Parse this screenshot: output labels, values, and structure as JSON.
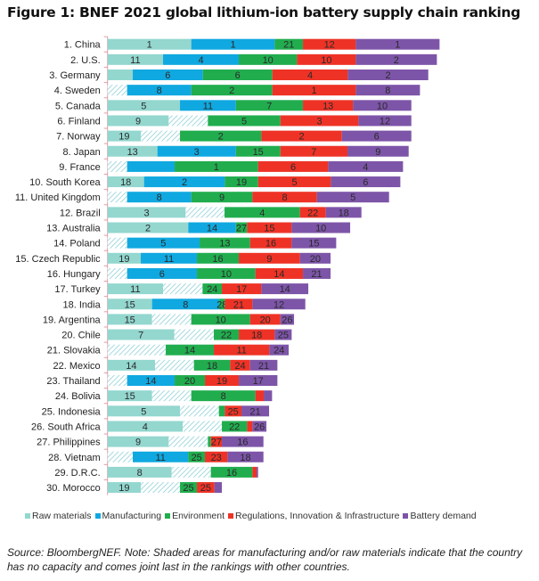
{
  "title": "Figure 1: BNEF 2021 global lithium-ion battery supply chain ranking",
  "source_note": "Source: BloombergNEF. Note: Shaded areas for manufacturing and/or raw materials indicate that the country has no capacity and comes joint last in the rankings with other countries.",
  "chart_data": {
    "type": "bar",
    "orientation": "horizontal",
    "stacked": true,
    "title": "Figure 1: BNEF 2021 global lithium-ion battery supply chain ranking",
    "xlabel": "",
    "ylabel": "",
    "xlim": [
      0,
      120
    ],
    "grid": false,
    "legend_placement": "bottom",
    "segment_text": "rank of the country in each category",
    "series": [
      {
        "name": "Raw materials",
        "color": "#93d7cf"
      },
      {
        "name": "Manufacturing",
        "color": "#10a8e0"
      },
      {
        "name": "Environment",
        "color": "#21ad4e"
      },
      {
        "name": "Regulations, Innovation & Infrastructure",
        "color": "#ee3326"
      },
      {
        "name": "Battery demand",
        "color": "#7d55a8"
      }
    ],
    "hatch_color": "#8fd0d8",
    "rows": [
      {
        "country": "1. China",
        "scores": [
          28.2,
          28.1,
          9.5,
          17.8,
          28.2
        ],
        "ranks": [
          "1",
          "1",
          "21",
          "12",
          "1"
        ],
        "no_capacity": [
          false,
          false,
          false,
          false,
          false
        ]
      },
      {
        "country": "2. U.S.",
        "scores": [
          18.7,
          25.5,
          19.6,
          19.8,
          27.3
        ],
        "ranks": [
          "11",
          "4",
          "10",
          "10",
          "2"
        ],
        "no_capacity": [
          false,
          false,
          false,
          false,
          false
        ]
      },
      {
        "country": "3. Germany",
        "scores": [
          8.5,
          23.6,
          23.4,
          25.4,
          27.1
        ],
        "ranks": [
          "",
          "6",
          "6",
          "4",
          "2"
        ],
        "no_capacity": [
          false,
          false,
          false,
          false,
          false
        ]
      },
      {
        "country": "4. Sweden",
        "scores": [
          6.6,
          21.6,
          27.3,
          28.1,
          21.6
        ],
        "ranks": [
          "",
          "8",
          "2",
          "1",
          "8"
        ],
        "no_capacity": [
          true,
          false,
          false,
          false,
          false
        ]
      },
      {
        "country": "5. Canada",
        "scores": [
          24.4,
          18.8,
          22.6,
          16.9,
          19.6
        ],
        "ranks": [
          "5",
          "11",
          "7",
          "13",
          "10"
        ],
        "no_capacity": [
          false,
          false,
          false,
          false,
          false
        ]
      },
      {
        "country": "6. Finland",
        "scores": [
          20.6,
          13.2,
          24.4,
          26.3,
          17.8
        ],
        "ranks": [
          "9",
          "",
          "5",
          "3",
          "12"
        ],
        "no_capacity": [
          false,
          true,
          false,
          false,
          false
        ]
      },
      {
        "country": "7. Norway",
        "scores": [
          11.2,
          13.2,
          27.4,
          27.1,
          23.4
        ],
        "ranks": [
          "19",
          "",
          "2",
          "2",
          "6"
        ],
        "no_capacity": [
          false,
          true,
          false,
          false,
          false
        ]
      },
      {
        "country": "8. Japan",
        "scores": [
          16.8,
          26.4,
          15.0,
          22.6,
          20.6
        ],
        "ranks": [
          "13",
          "3",
          "15",
          "7",
          "9"
        ],
        "no_capacity": [
          false,
          false,
          false,
          false,
          false
        ]
      },
      {
        "country": "9. France",
        "scores": [
          6.6,
          16.0,
          28.1,
          23.6,
          25.2
        ],
        "ranks": [
          "",
          "",
          "1",
          "6",
          "4"
        ],
        "no_capacity": [
          true,
          false,
          false,
          false,
          false
        ]
      },
      {
        "country": "10. South Korea",
        "scores": [
          12.3,
          27.2,
          11.2,
          24.5,
          23.4
        ],
        "ranks": [
          "18",
          "2",
          "19",
          "5",
          "6"
        ],
        "no_capacity": [
          false,
          false,
          false,
          false,
          false
        ]
      },
      {
        "country": "11. United Kingdom",
        "scores": [
          6.6,
          21.6,
          20.6,
          21.7,
          24.3
        ],
        "ranks": [
          "",
          "8",
          "9",
          "8",
          "5"
        ],
        "no_capacity": [
          true,
          false,
          false,
          false,
          false
        ]
      },
      {
        "country": "12. Brazil",
        "scores": [
          26.3,
          13.1,
          25.4,
          8.7,
          12.0
        ],
        "ranks": [
          "3",
          "",
          "4",
          "22",
          "18"
        ],
        "no_capacity": [
          false,
          true,
          false,
          false,
          false
        ]
      },
      {
        "country": "13. Australia",
        "scores": [
          27.2,
          16.0,
          3.8,
          15.0,
          19.7
        ],
        "ranks": [
          "2",
          "14",
          "27",
          "15",
          "10"
        ],
        "no_capacity": [
          false,
          false,
          false,
          false,
          false
        ]
      },
      {
        "country": "14. Poland",
        "scores": [
          6.6,
          24.4,
          17.0,
          14.0,
          15.0
        ],
        "ranks": [
          "",
          "5",
          "13",
          "16",
          "15"
        ],
        "no_capacity": [
          true,
          false,
          false,
          false,
          false
        ]
      },
      {
        "country": "15. Czech Republic",
        "scores": [
          11.2,
          18.9,
          14.1,
          20.6,
          10.3
        ],
        "ranks": [
          "19",
          "11",
          "16",
          "9",
          "20"
        ],
        "no_capacity": [
          false,
          false,
          false,
          false,
          false
        ]
      },
      {
        "country": "16. Hungary",
        "scores": [
          6.6,
          23.5,
          19.7,
          16.0,
          9.3
        ],
        "ranks": [
          "",
          "6",
          "10",
          "14",
          "21"
        ],
        "no_capacity": [
          true,
          false,
          false,
          false,
          false
        ]
      },
      {
        "country": "17. Turkey",
        "scores": [
          18.7,
          13.3,
          6.5,
          13.3,
          15.8
        ],
        "ranks": [
          "11",
          "",
          "24",
          "17",
          "14"
        ],
        "no_capacity": [
          false,
          true,
          false,
          false,
          false
        ]
      },
      {
        "country": "18. India",
        "scores": [
          15.0,
          22.6,
          1.9,
          9.3,
          17.8
        ],
        "ranks": [
          "15",
          "8",
          "28",
          "21",
          "12"
        ],
        "no_capacity": [
          false,
          false,
          false,
          false,
          false
        ]
      },
      {
        "country": "19. Argentina",
        "scores": [
          15.0,
          13.2,
          19.8,
          10.2,
          4.6
        ],
        "ranks": [
          "15",
          "",
          "10",
          "20",
          "26"
        ],
        "no_capacity": [
          false,
          true,
          false,
          false,
          false
        ]
      },
      {
        "country": "20. Chile",
        "scores": [
          22.5,
          13.3,
          8.4,
          12.1,
          5.7
        ],
        "ranks": [
          "7",
          "",
          "22",
          "18",
          "25"
        ],
        "no_capacity": [
          false,
          true,
          false,
          false,
          false
        ]
      },
      {
        "country": "21. Slovakia",
        "scores": [
          6.6,
          13.0,
          16.2,
          18.7,
          6.5
        ],
        "ranks": [
          "",
          "",
          "14",
          "11",
          "24"
        ],
        "no_capacity": [
          true,
          true,
          false,
          false,
          false
        ]
      },
      {
        "country": "22. Mexico",
        "scores": [
          16.0,
          13.1,
          12.2,
          6.7,
          9.2
        ],
        "ranks": [
          "14",
          "",
          "18",
          "24",
          "21"
        ],
        "no_capacity": [
          false,
          true,
          false,
          false,
          false
        ]
      },
      {
        "country": "23. Thailand",
        "scores": [
          6.6,
          16.0,
          10.2,
          11.4,
          13.0
        ],
        "ranks": [
          "",
          "14",
          "20",
          "19",
          "17"
        ],
        "no_capacity": [
          true,
          false,
          false,
          false,
          false
        ]
      },
      {
        "country": "24. Bolivia",
        "scores": [
          15.0,
          13.2,
          21.6,
          2.8,
          2.8
        ],
        "ranks": [
          "15",
          "",
          "8",
          "",
          ""
        ],
        "no_capacity": [
          false,
          true,
          false,
          false,
          false
        ]
      },
      {
        "country": "25. Indonesia",
        "scores": [
          24.4,
          13.1,
          2.0,
          5.6,
          9.3
        ],
        "ranks": [
          "5",
          "",
          "",
          "25",
          "21"
        ],
        "no_capacity": [
          false,
          true,
          false,
          false,
          false
        ]
      },
      {
        "country": "26. South Africa",
        "scores": [
          25.3,
          13.2,
          8.5,
          1.8,
          4.7
        ],
        "ranks": [
          "4",
          "",
          "22",
          "",
          "26"
        ],
        "no_capacity": [
          false,
          true,
          false,
          false,
          false
        ]
      },
      {
        "country": "27. Philippines",
        "scores": [
          20.6,
          13.2,
          1.0,
          3.7,
          14.0
        ],
        "ranks": [
          "9",
          "",
          "",
          "27",
          "16"
        ],
        "no_capacity": [
          false,
          true,
          false,
          false,
          false
        ]
      },
      {
        "country": "28. Vietnam",
        "scores": [
          8.5,
          18.7,
          5.6,
          7.6,
          12.1
        ],
        "ranks": [
          "",
          "11",
          "25",
          "23",
          "18"
        ],
        "no_capacity": [
          true,
          false,
          false,
          false,
          false
        ]
      },
      {
        "country": "29. D.R.C.",
        "scores": [
          21.6,
          13.2,
          14.0,
          1.4,
          0.5
        ],
        "ranks": [
          "8",
          "",
          "16",
          "",
          ""
        ],
        "no_capacity": [
          false,
          true,
          false,
          false,
          false
        ]
      },
      {
        "country": "30. Morocco",
        "scores": [
          11.2,
          13.2,
          5.7,
          5.9,
          2.5
        ],
        "ranks": [
          "19",
          "",
          "25",
          "25",
          ""
        ],
        "no_capacity": [
          false,
          true,
          false,
          false,
          false
        ]
      }
    ]
  }
}
